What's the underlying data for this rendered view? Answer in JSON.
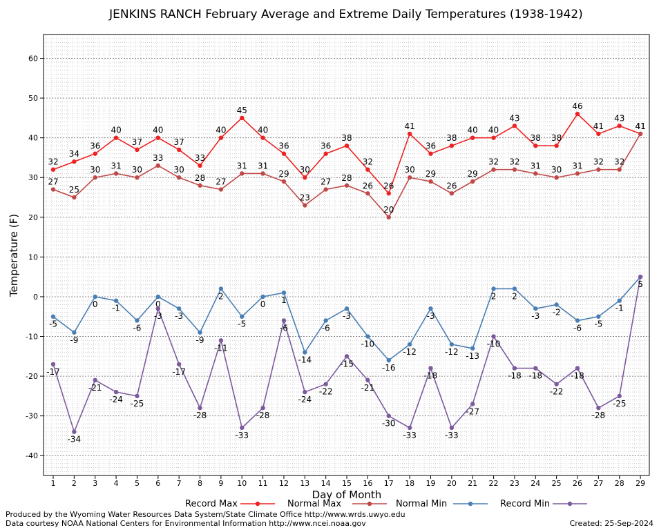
{
  "chart_data": {
    "type": "line",
    "title": "JENKINS RANCH February Average and Extreme Daily Temperatures (1938-1942)",
    "xlabel": "Day of Month",
    "ylabel": "Temperature (F)",
    "ylim": [
      -45,
      66
    ],
    "yticks": [
      -40,
      -30,
      -20,
      -10,
      0,
      10,
      20,
      30,
      40,
      50,
      60
    ],
    "grid": true,
    "legend_position": "bottom",
    "x": [
      1,
      2,
      3,
      4,
      5,
      6,
      7,
      8,
      9,
      10,
      11,
      12,
      13,
      14,
      15,
      16,
      17,
      18,
      19,
      20,
      21,
      22,
      23,
      24,
      25,
      26,
      27,
      28,
      29
    ],
    "series": [
      {
        "name": "Record Max",
        "color": "#ee2222",
        "values": [
          32,
          34,
          36,
          40,
          37,
          40,
          37,
          33,
          40,
          45,
          40,
          36,
          30,
          36,
          38,
          32,
          26,
          41,
          36,
          38,
          40,
          40,
          43,
          38,
          38,
          46,
          41,
          43,
          41
        ]
      },
      {
        "name": "Normal Max",
        "color": "#c04848",
        "values": [
          27,
          25,
          30,
          31,
          30,
          33,
          30,
          28,
          27,
          31,
          31,
          29,
          23,
          27,
          28,
          26,
          20,
          30,
          29,
          26,
          29,
          32,
          32,
          31,
          30,
          31,
          32,
          32,
          41
        ]
      },
      {
        "name": "Normal Min",
        "color": "#4a7fb5",
        "values": [
          -5,
          -9,
          0,
          -1,
          -6,
          0,
          -3,
          -9,
          2,
          -5,
          0,
          1,
          -14,
          -6,
          -3,
          -10,
          -16,
          -12,
          -3,
          -12,
          -13,
          2,
          2,
          -3,
          -2,
          -6,
          -5,
          -1,
          5
        ]
      },
      {
        "name": "Record Min",
        "color": "#7b5a9e",
        "values": [
          -17,
          -34,
          -21,
          -24,
          -25,
          -3,
          -17,
          -28,
          -11,
          -33,
          -28,
          -6,
          -24,
          -22,
          -15,
          -21,
          -30,
          -33,
          -18,
          -33,
          -27,
          -10,
          -18,
          -18,
          -22,
          -18,
          -28,
          -25,
          5
        ]
      }
    ]
  },
  "footer": {
    "produced_by": "Produced by the Wyoming Water Resources Data System/State Climate Office http://www.wrds.uwyo.edu",
    "courtesy": "Data courtesy NOAA National Centers for Environmental Information http://www.ncei.noaa.gov",
    "created": "Created:  25-Sep-2024"
  }
}
